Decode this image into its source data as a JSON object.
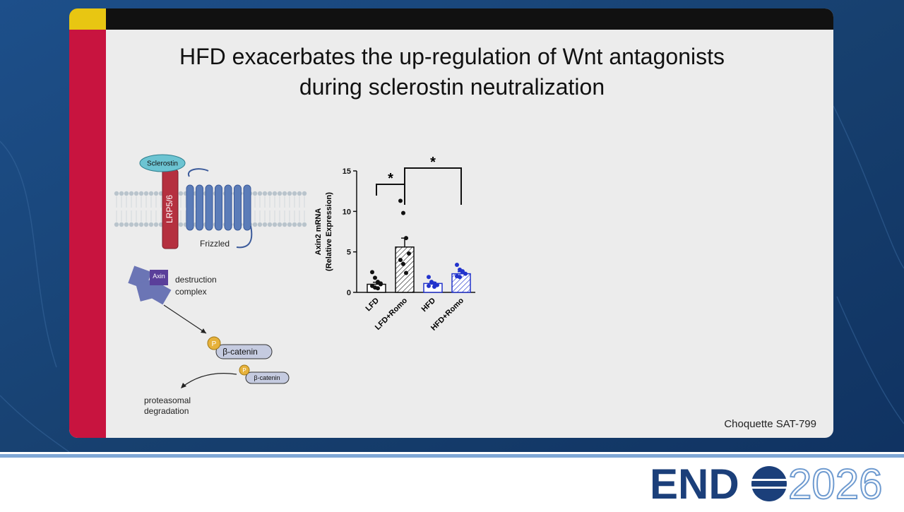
{
  "slide": {
    "title_lines": [
      "HFD exacerbates the up-regulation of Wnt antagonists",
      "during sclerostin neutralization"
    ],
    "footer": "Choquette SAT-799"
  },
  "diagram": {
    "sclerostin": "Sclerostin",
    "receptor": "LRP5/6",
    "frizzled": "Frizzled",
    "axin": "Axin",
    "complex_lines": [
      "destruction",
      "complex"
    ],
    "phospho_1": "P",
    "beta_catenin_1": "β-catenin",
    "phospho_2": "P",
    "beta_catenin_2": "β-catenin",
    "degradation_lines": [
      "proteasomal",
      "degradation"
    ]
  },
  "logo": {
    "brand": "END",
    "year": "2026"
  },
  "chart_data": {
    "type": "bar",
    "ylabel": [
      "Axin2 mRNA",
      "(Relative Expression)"
    ],
    "categories": [
      "LFD",
      "LFD+Romo",
      "HFD",
      "HFD+Romo"
    ],
    "values": [
      1.0,
      5.6,
      1.1,
      2.3
    ],
    "errors": [
      0.25,
      1.1,
      0.15,
      0.25
    ],
    "colors": [
      "#111111",
      "#111111",
      "#2233cc",
      "#2233cc"
    ],
    "hatched": [
      false,
      true,
      false,
      true
    ],
    "points": [
      [
        2.5,
        1.8,
        1.3,
        1.0,
        0.8,
        0.6,
        0.5,
        1.1
      ],
      [
        11.3,
        9.8,
        6.7,
        4.8,
        4.0,
        3.5,
        2.4
      ],
      [
        1.9,
        1.3,
        1.1,
        0.9,
        0.8,
        1.2,
        0.7
      ],
      [
        3.4,
        2.8,
        2.6,
        2.3,
        2.0,
        1.9,
        2.5
      ]
    ],
    "ylim": [
      0,
      15
    ],
    "yticks": [
      0,
      5,
      10,
      15
    ],
    "significance": [
      {
        "pair": [
          0,
          1
        ],
        "label": "*"
      },
      {
        "pair": [
          1,
          3
        ],
        "label": "*"
      }
    ]
  }
}
